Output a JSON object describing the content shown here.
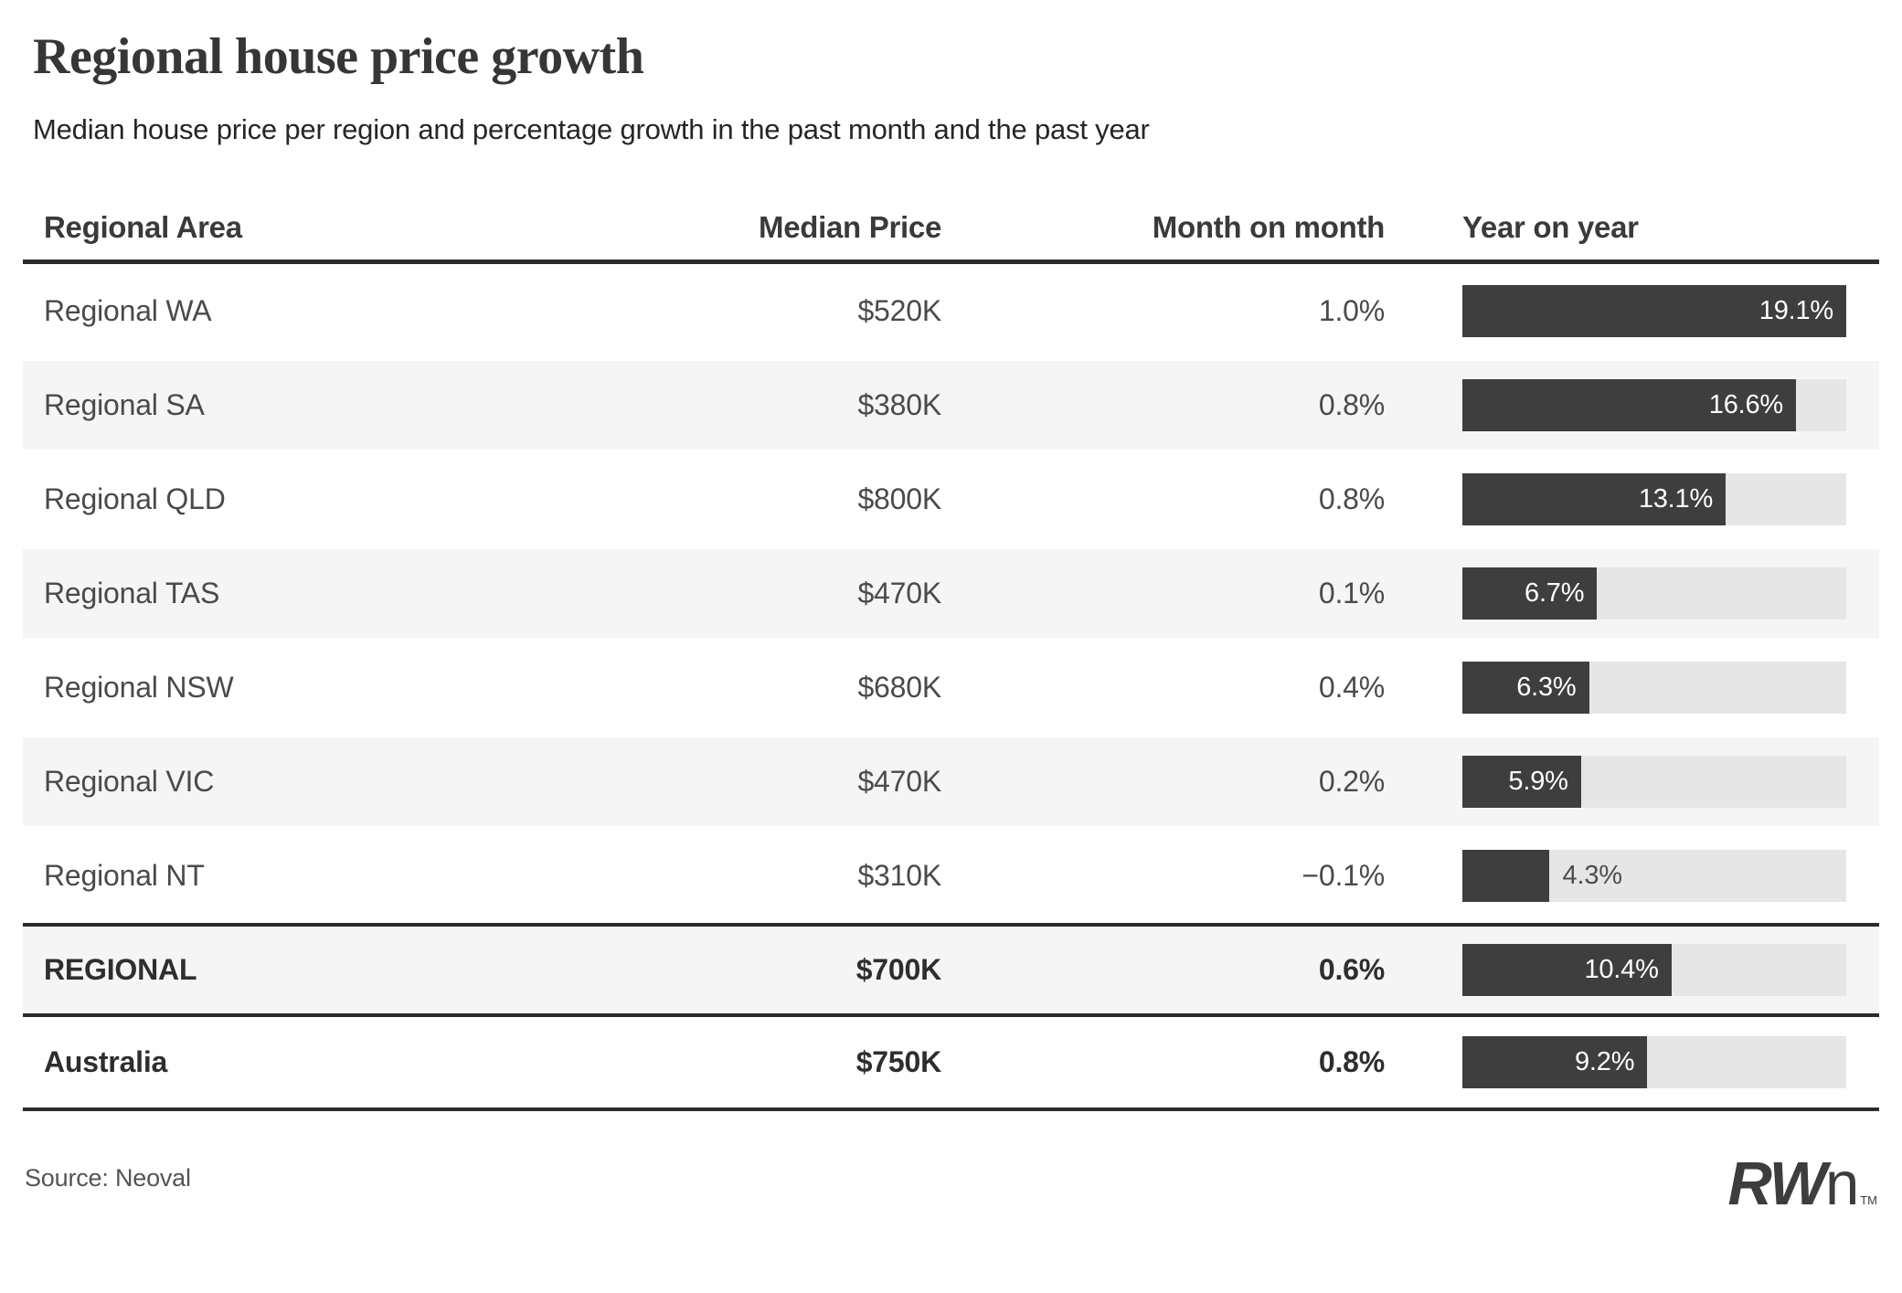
{
  "header": {
    "title": "Regional house price growth",
    "subtitle": "Median house price per region and percentage growth in the past month and the past year"
  },
  "table": {
    "columns": [
      "Regional Area",
      "Median Price",
      "Month on month",
      "Year on year"
    ],
    "bar_max": 19.1,
    "rows": [
      {
        "area": "Regional WA",
        "median_price": "$520K",
        "month_on_month": "1.0%",
        "year_on_year": 19.1,
        "year_on_year_label": "19.1%"
      },
      {
        "area": "Regional SA",
        "median_price": "$380K",
        "month_on_month": "0.8%",
        "year_on_year": 16.6,
        "year_on_year_label": "16.6%"
      },
      {
        "area": "Regional QLD",
        "median_price": "$800K",
        "month_on_month": "0.8%",
        "year_on_year": 13.1,
        "year_on_year_label": "13.1%"
      },
      {
        "area": "Regional TAS",
        "median_price": "$470K",
        "month_on_month": "0.1%",
        "year_on_year": 6.7,
        "year_on_year_label": "6.7%"
      },
      {
        "area": "Regional NSW",
        "median_price": "$680K",
        "month_on_month": "0.4%",
        "year_on_year": 6.3,
        "year_on_year_label": "6.3%"
      },
      {
        "area": "Regional VIC",
        "median_price": "$470K",
        "month_on_month": "0.2%",
        "year_on_year": 5.9,
        "year_on_year_label": "5.9%"
      },
      {
        "area": "Regional NT",
        "median_price": "$310K",
        "month_on_month": "−0.1%",
        "year_on_year": 4.3,
        "year_on_year_label": "4.3%"
      },
      {
        "area": "REGIONAL",
        "median_price": "$700K",
        "month_on_month": "0.6%",
        "year_on_year": 10.4,
        "year_on_year_label": "10.4%"
      },
      {
        "area": "Australia",
        "median_price": "$750K",
        "month_on_month": "0.8%",
        "year_on_year": 9.2,
        "year_on_year_label": "9.2%"
      }
    ]
  },
  "chart_data": {
    "type": "bar",
    "orientation": "horizontal",
    "title": "Regional house price growth",
    "subtitle": "Median house price per region and percentage growth in the past month and the past year",
    "categories": [
      "Regional WA",
      "Regional SA",
      "Regional QLD",
      "Regional TAS",
      "Regional NSW",
      "Regional VIC",
      "Regional NT",
      "REGIONAL",
      "Australia"
    ],
    "series": [
      {
        "name": "Median Price ($K)",
        "values": [
          520,
          380,
          800,
          470,
          680,
          470,
          310,
          700,
          750
        ]
      },
      {
        "name": "Month on month (%)",
        "values": [
          1.0,
          0.8,
          0.8,
          0.1,
          0.4,
          0.2,
          -0.1,
          0.6,
          0.8
        ]
      },
      {
        "name": "Year on year (%)",
        "values": [
          19.1,
          16.6,
          13.1,
          6.7,
          6.3,
          5.9,
          4.3,
          10.4,
          9.2
        ]
      }
    ],
    "bar_series_plotted": "Year on year (%)",
    "xlim": [
      0,
      19.1
    ],
    "grid": false,
    "legend": false,
    "source": "Neoval"
  },
  "footer": {
    "source": "Source: Neoval",
    "logo": {
      "bold": "RW",
      "light": "n",
      "tm": "TM"
    }
  },
  "colors": {
    "bar_fill": "#3e3e3e",
    "bar_track": "#e6e6e6",
    "row_stripe": "#f5f5f5",
    "rule": "#2b2b2b",
    "bar_label_inside": "#ffffff",
    "bar_label_outside": "#4d4d4d"
  }
}
